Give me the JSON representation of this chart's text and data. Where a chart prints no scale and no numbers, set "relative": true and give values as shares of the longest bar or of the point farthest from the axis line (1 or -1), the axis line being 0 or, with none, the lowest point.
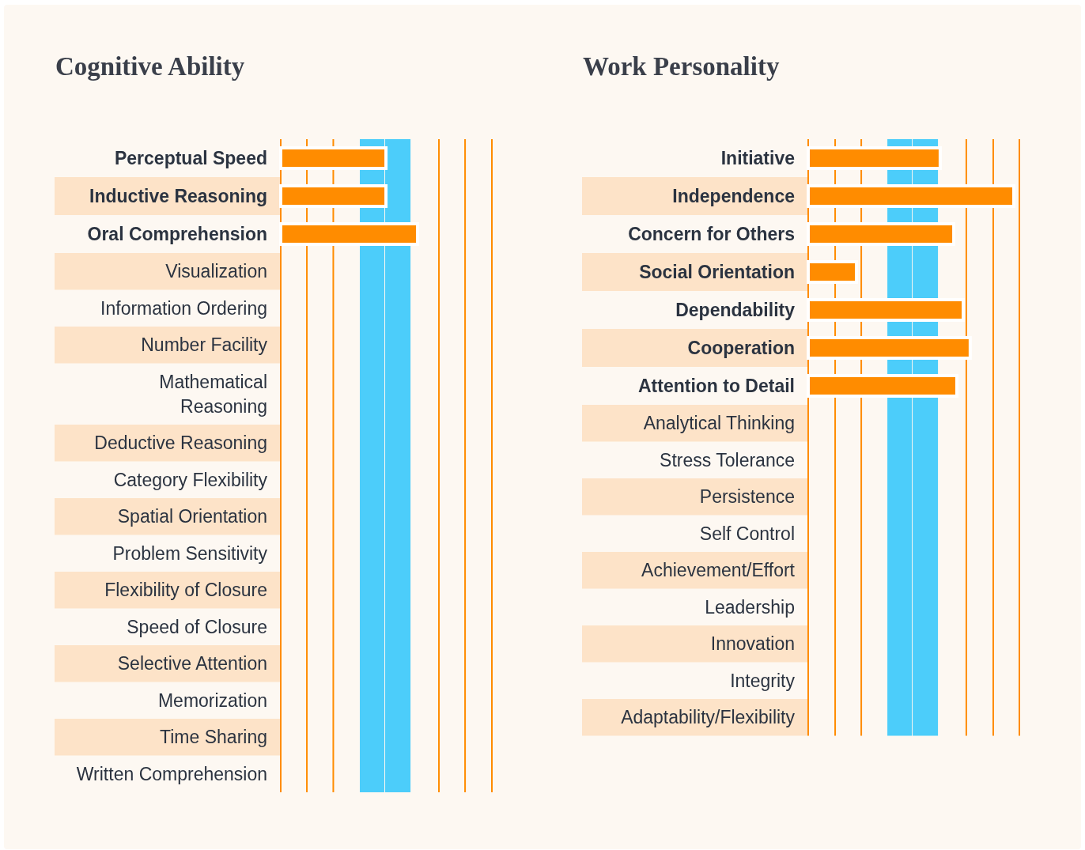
{
  "chart_data": [
    {
      "type": "bar",
      "orientation": "horizontal",
      "relative": true,
      "title": "Cognitive Ability",
      "color": "#ff8c00",
      "categories": [
        "Perceptual Speed",
        "Inductive Reasoning",
        "Oral Comprehension",
        "Visualization",
        "Information Ordering",
        "Number Facility",
        "Mathematical\nReasoning",
        "Deductive Reasoning",
        "Category Flexibility",
        "Spatial Orientation",
        "Problem Sensitivity",
        "Flexibility of Closure",
        "Speed of Closure",
        "Selective Attention",
        "Memorization",
        "Time Sharing",
        "Written Comprehension"
      ],
      "values": [
        0.769,
        0.769,
        1,
        null,
        null,
        null,
        null,
        null,
        null,
        null,
        null,
        null,
        null,
        null,
        null,
        null,
        null
      ],
      "bands": [
        {
          "axis": "x",
          "from": 0.578,
          "to": 0.763,
          "color": "#4ccdfa"
        },
        {
          "axis": "x",
          "from": 0.763,
          "to": 0.954,
          "color": "#4ccdfa"
        }
      ],
      "ref_lines": [
        {
          "axis": "x",
          "value": 0.191,
          "color": "#ff8c00"
        },
        {
          "axis": "x",
          "value": 0.384,
          "color": "#ff8c00"
        },
        {
          "axis": "x",
          "value": 1.156,
          "color": "#ff8c00"
        },
        {
          "axis": "x",
          "value": 1.347,
          "color": "#ff8c00"
        },
        {
          "axis": "x",
          "value": 1.543,
          "color": "#ff8c00"
        }
      ]
    },
    {
      "type": "bar",
      "orientation": "horizontal",
      "relative": true,
      "title": "Work Personality",
      "color": "#ff8c00",
      "categories": [
        "Initiative",
        "Independence",
        "Concern for Others",
        "Social Orientation",
        "Dependability",
        "Cooperation",
        "Attention to Detail",
        "Analytical Thinking",
        "Stress Tolerance",
        "Persistence",
        "Self Control",
        "Achievement/Effort",
        "Leadership",
        "Innovation",
        "Integrity",
        "Adaptability/Flexibility"
      ],
      "values": [
        0.642,
        1,
        0.708,
        0.235,
        0.754,
        0.788,
        0.723,
        null,
        null,
        null,
        null,
        null,
        null,
        null,
        null,
        null
      ],
      "bands": [
        {
          "axis": "x",
          "from": 0.385,
          "to": 0.508,
          "color": "#4ccdfa"
        },
        {
          "axis": "x",
          "from": 0.508,
          "to": 0.635,
          "color": "#4ccdfa"
        }
      ],
      "ref_lines": [
        {
          "axis": "x",
          "value": 0.131,
          "color": "#ff8c00"
        },
        {
          "axis": "x",
          "value": 0.258,
          "color": "#ff8c00"
        },
        {
          "axis": "x",
          "value": 0.769,
          "color": "#ff8c00"
        },
        {
          "axis": "x",
          "value": 0.9,
          "color": "#ff8c00"
        },
        {
          "axis": "x",
          "value": 1.027,
          "color": "#ff8c00"
        }
      ]
    }
  ]
}
